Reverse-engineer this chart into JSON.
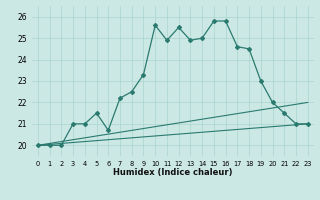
{
  "xlabel": "Humidex (Indice chaleur)",
  "bg_color": "#cce8e5",
  "line_color": "#2a7a6f",
  "grid_color": "#aad4cf",
  "xlim": [
    -0.5,
    23.5
  ],
  "ylim": [
    19.5,
    26.5
  ],
  "xticks": [
    0,
    1,
    2,
    3,
    4,
    5,
    6,
    7,
    8,
    9,
    10,
    11,
    12,
    13,
    14,
    15,
    16,
    17,
    18,
    19,
    20,
    21,
    22,
    23
  ],
  "yticks": [
    20,
    21,
    22,
    23,
    24,
    25,
    26
  ],
  "main_x": [
    0,
    1,
    2,
    3,
    4,
    5,
    6,
    7,
    8,
    9,
    10,
    11,
    12,
    13,
    14,
    15,
    16,
    17,
    18,
    19,
    20,
    21,
    22,
    23
  ],
  "main_y": [
    20,
    20,
    20,
    21,
    21,
    21.5,
    20.7,
    22.2,
    22.5,
    23.3,
    25.6,
    24.9,
    25.5,
    24.9,
    25.0,
    25.8,
    25.8,
    24.6,
    24.5,
    23.0,
    22.0,
    21.5,
    21.0,
    21.0
  ],
  "line2_x": [
    0,
    23
  ],
  "line2_y": [
    20.0,
    21.0
  ],
  "line3_x": [
    0,
    23
  ],
  "line3_y": [
    20.0,
    22.0
  ]
}
